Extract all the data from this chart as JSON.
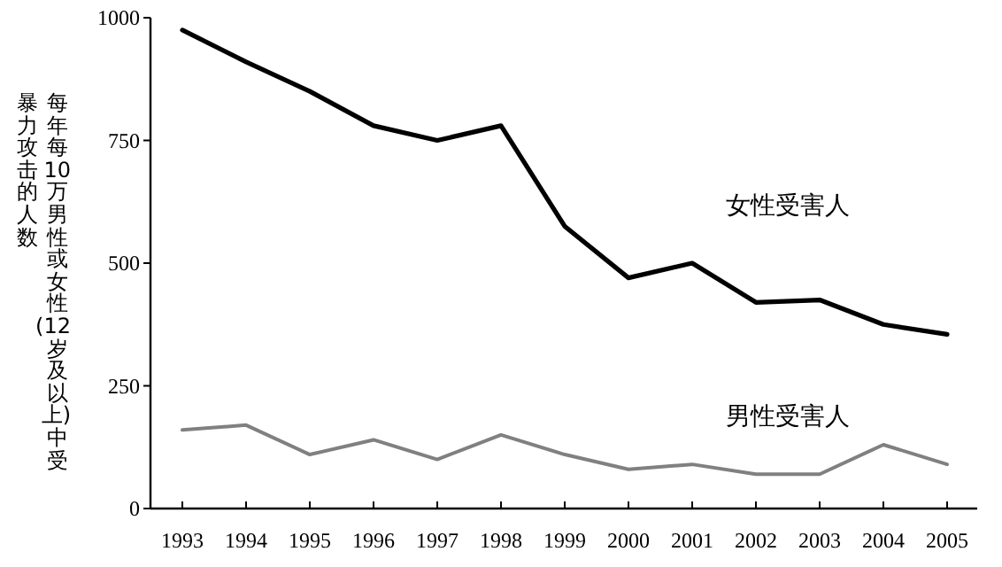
{
  "chart_data": {
    "type": "line",
    "ylabel": "每年每10万男性或女性(12岁及以上)中受暴力攻击的人数",
    "categories": [
      "1993",
      "1994",
      "1995",
      "1996",
      "1997",
      "1998",
      "1999",
      "2000",
      "2001",
      "2002",
      "2003",
      "2004",
      "2005"
    ],
    "series": [
      {
        "name": "女性受害人",
        "color": "#000000",
        "values": [
          975,
          910,
          850,
          780,
          750,
          780,
          575,
          470,
          500,
          420,
          425,
          375,
          355
        ]
      },
      {
        "name": "男性受害人",
        "color": "#808080",
        "values": [
          160,
          170,
          110,
          140,
          100,
          150,
          110,
          80,
          90,
          70,
          70,
          130,
          90
        ]
      }
    ],
    "ylim": [
      0,
      1000
    ],
    "yticks": [
      0,
      250,
      500,
      750,
      1000
    ],
    "grid": false,
    "marker": "none",
    "line_style": "solid"
  }
}
